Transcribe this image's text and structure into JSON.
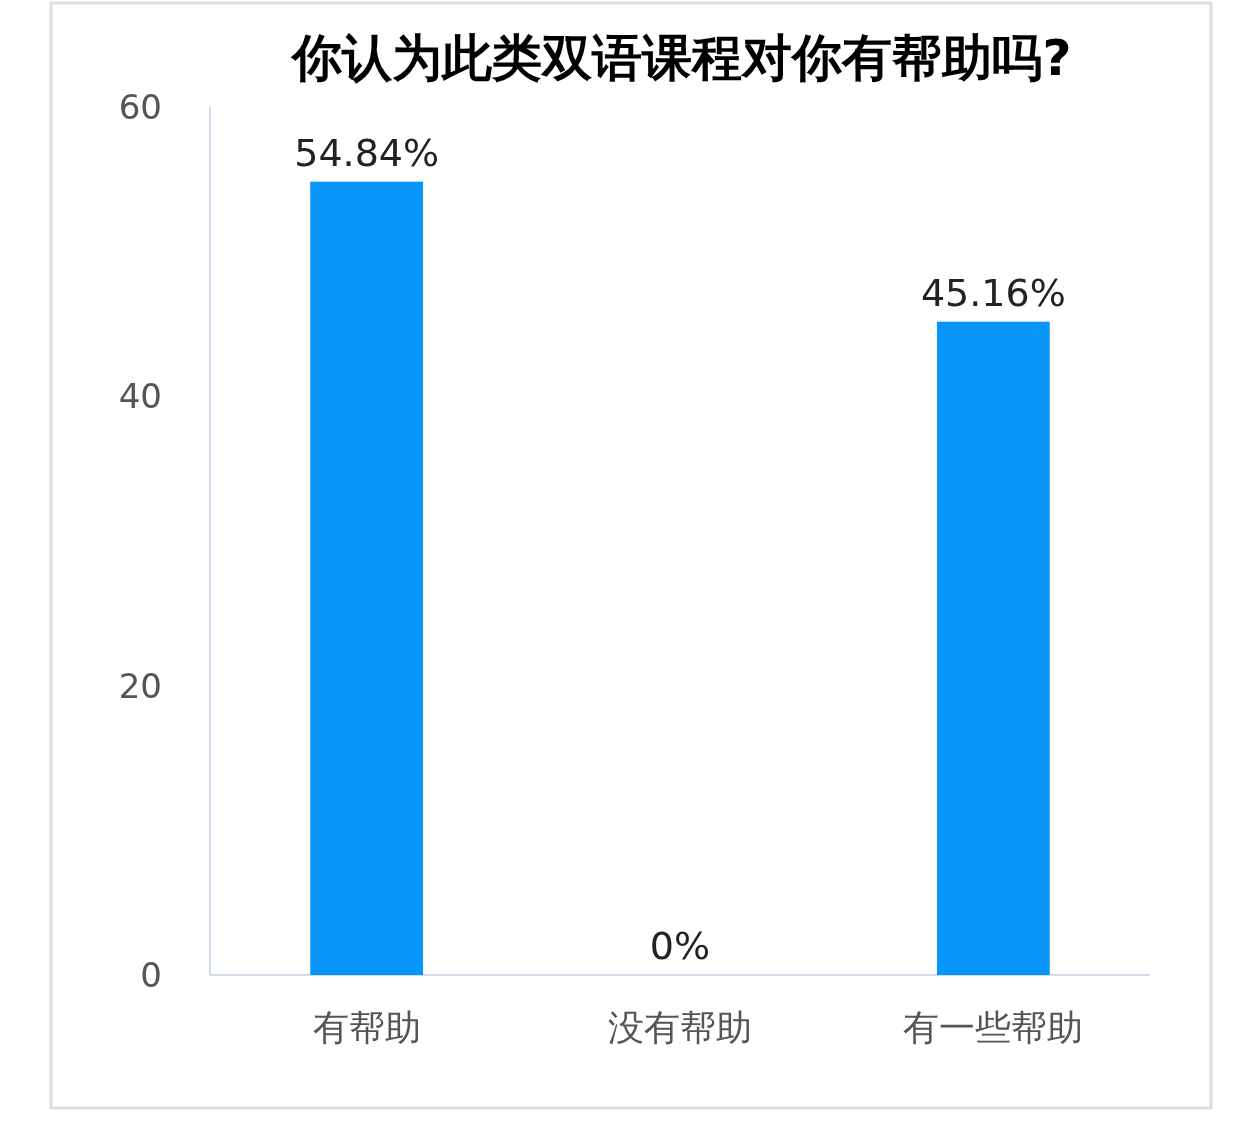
{
  "chart_data": {
    "type": "bar",
    "title": "你认为此类双语课程对你有帮助吗?",
    "categories": [
      "有帮助",
      "没有帮助",
      "有一些帮助"
    ],
    "values": [
      54.84,
      0,
      45.16
    ],
    "value_labels": [
      "54.84%",
      "0%",
      "45.16%"
    ],
    "color": "#0795fa",
    "ylim": [
      0,
      60
    ],
    "yticks": [
      0,
      20,
      40,
      60
    ],
    "grid": false
  }
}
